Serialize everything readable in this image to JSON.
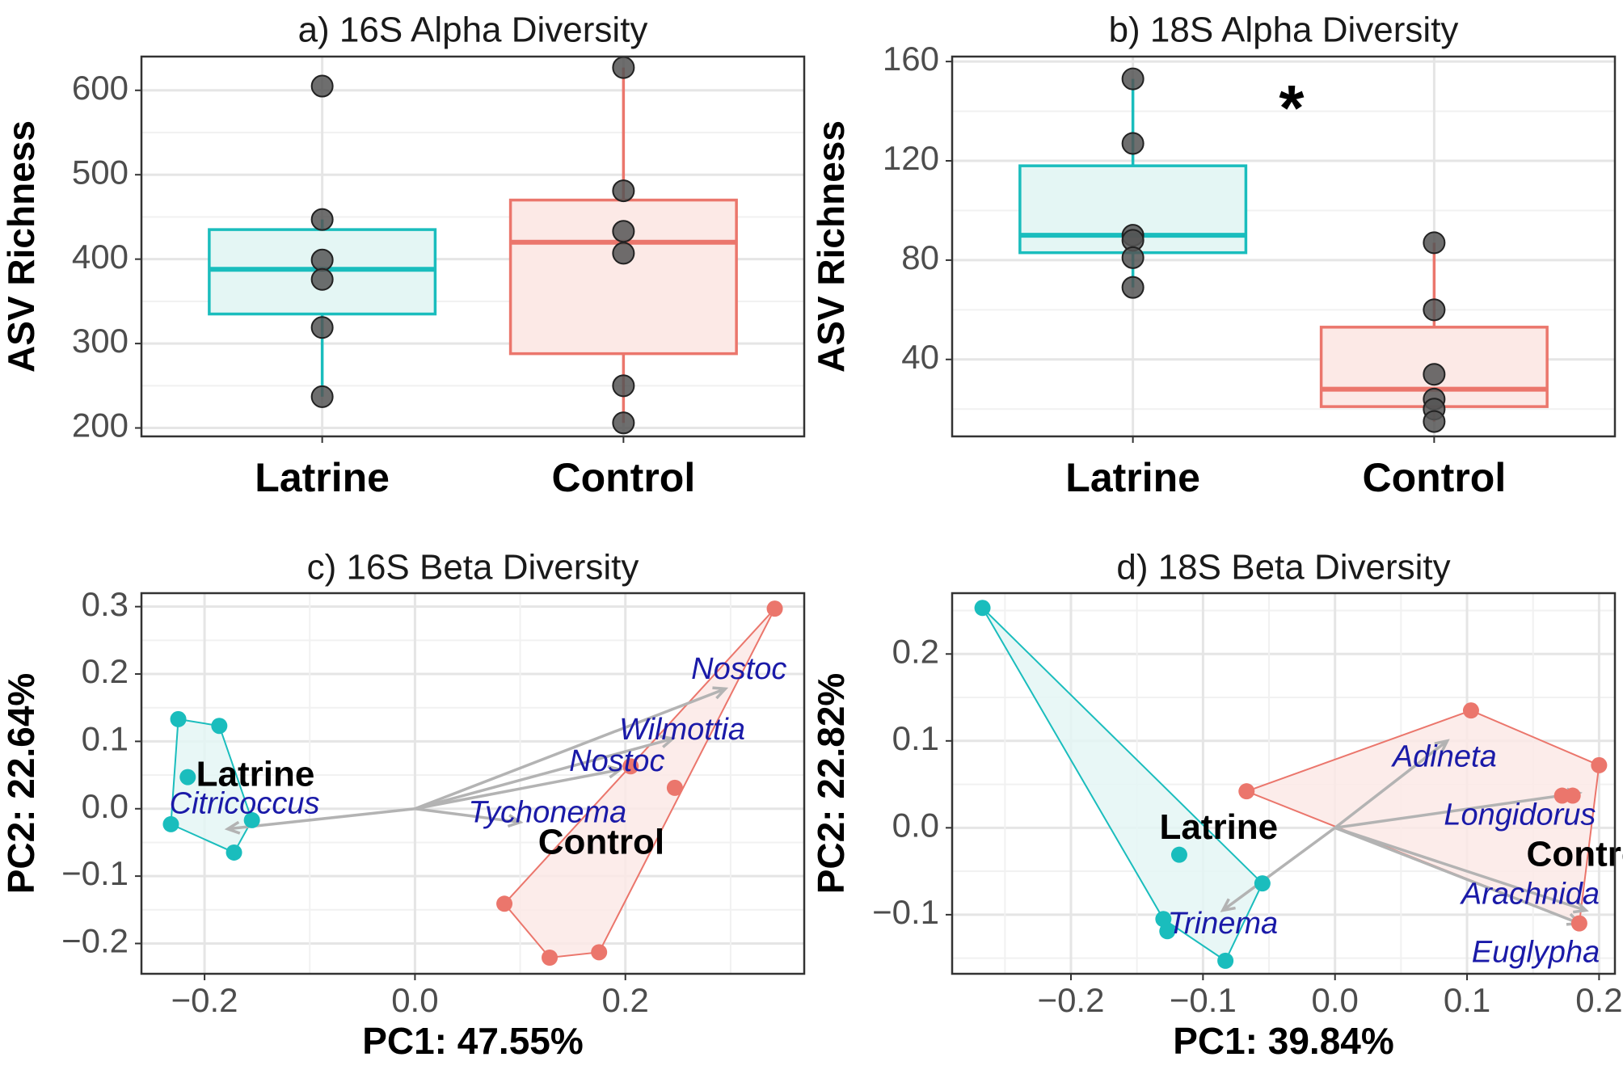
{
  "colors": {
    "latrine": "#1ABDBD",
    "latrine_fill": "#E4F6F4",
    "control": "#EB766C",
    "control_fill": "#FCE9E6",
    "point": "#555555",
    "taxon": "#1a1aa8",
    "arrow": "#B3B3B3"
  },
  "chart_data": [
    {
      "id": "a",
      "type": "box",
      "title": "a) 16S Alpha Diversity",
      "ylabel": "ASV Richness",
      "xlabel": "",
      "categories": [
        "Latrine",
        "Control"
      ],
      "ylim": [
        190,
        640
      ],
      "yticks": [
        200,
        300,
        400,
        500,
        600
      ],
      "boxes": [
        {
          "group": "Latrine",
          "whisker_low": 237,
          "q1": 335,
          "median": 388,
          "q3": 435,
          "whisker_high": 447
        },
        {
          "group": "Control",
          "whisker_low": 206,
          "q1": 288,
          "median": 420,
          "q3": 470,
          "whisker_high": 627
        }
      ],
      "points": [
        {
          "group": "Latrine",
          "values": [
            605,
            447,
            399,
            376,
            319,
            237
          ]
        },
        {
          "group": "Control",
          "values": [
            627,
            481,
            433,
            407,
            250,
            206
          ]
        }
      ],
      "annotation": ""
    },
    {
      "id": "b",
      "type": "box",
      "title": "b) 18S Alpha Diversity",
      "ylabel": "ASV Richness",
      "xlabel": "",
      "categories": [
        "Latrine",
        "Control"
      ],
      "ylim": [
        9,
        162
      ],
      "yticks": [
        40,
        80,
        120,
        160
      ],
      "boxes": [
        {
          "group": "Latrine",
          "whisker_low": 69,
          "q1": 83,
          "median": 90,
          "q3": 118,
          "whisker_high": 153
        },
        {
          "group": "Control",
          "whisker_low": 15,
          "q1": 21,
          "median": 28,
          "q3": 53,
          "whisker_high": 87
        }
      ],
      "points": [
        {
          "group": "Latrine",
          "values": [
            153,
            127,
            90,
            88,
            81,
            69
          ]
        },
        {
          "group": "Control",
          "values": [
            87,
            60,
            34,
            24,
            20,
            15
          ]
        }
      ],
      "annotation": "*"
    },
    {
      "id": "c",
      "type": "scatter",
      "title": "c) 16S Beta Diversity",
      "xlabel": "PC1: 47.55%",
      "ylabel": "PC2: 22.64%",
      "xlim": [
        -0.26,
        0.37
      ],
      "ylim": [
        -0.245,
        0.32
      ],
      "xticks": [
        -0.2,
        0.0,
        0.2
      ],
      "yticks": [
        -0.2,
        -0.1,
        0.0,
        0.1,
        0.2,
        0.3
      ],
      "tick_labels_x": [
        "−0.2",
        "0.0",
        "0.2"
      ],
      "tick_labels_y": [
        "−0.2",
        "−0.1",
        "0.0",
        "0.1",
        "0.2",
        "0.3"
      ],
      "groups": [
        {
          "name": "Latrine",
          "label_at": [
            -0.208,
            0.048
          ],
          "points": [
            [
              -0.225,
              0.133
            ],
            [
              -0.186,
              0.123
            ],
            [
              -0.216,
              0.047
            ],
            [
              -0.155,
              -0.017
            ],
            [
              -0.232,
              -0.023
            ],
            [
              -0.172,
              -0.065
            ]
          ],
          "hull": [
            [
              -0.225,
              0.133
            ],
            [
              -0.186,
              0.123
            ],
            [
              -0.155,
              -0.017
            ],
            [
              -0.172,
              -0.065
            ],
            [
              -0.232,
              -0.023
            ]
          ]
        },
        {
          "name": "Control",
          "label_at": [
            0.117,
            -0.053
          ],
          "points": [
            [
              0.342,
              0.297
            ],
            [
              0.205,
              0.063
            ],
            [
              0.247,
              0.031
            ],
            [
              0.085,
              -0.141
            ],
            [
              0.175,
              -0.213
            ],
            [
              0.128,
              -0.221
            ]
          ],
          "hull": [
            [
              0.342,
              0.297
            ],
            [
              0.175,
              -0.213
            ],
            [
              0.128,
              -0.221
            ],
            [
              0.085,
              -0.141
            ]
          ]
        }
      ],
      "origin": [
        0.0,
        0.0
      ],
      "arrows": [
        {
          "taxon": "Nostoc",
          "to": [
            0.295,
            0.178
          ],
          "label_at": [
            0.308,
            0.205
          ]
        },
        {
          "taxon": "Wilmottia",
          "to": [
            0.245,
            0.104
          ],
          "label_at": [
            0.254,
            0.115
          ]
        },
        {
          "taxon": "Nostoc",
          "to": [
            0.195,
            0.058
          ],
          "label_at": [
            0.192,
            0.068
          ]
        },
        {
          "taxon": "Tychonema",
          "to": [
            0.1,
            -0.02
          ],
          "label_at": [
            0.126,
            -0.008
          ]
        },
        {
          "taxon": "Citricoccus",
          "to": [
            -0.178,
            -0.03
          ],
          "label_at": [
            -0.162,
            0.005
          ]
        }
      ]
    },
    {
      "id": "d",
      "type": "scatter",
      "title": "d) 18S Beta Diversity",
      "xlabel": "PC1: 39.84%",
      "ylabel": "PC2: 22.82%",
      "xlim": [
        -0.29,
        0.212
      ],
      "ylim": [
        -0.168,
        0.27
      ],
      "xticks": [
        -0.2,
        -0.1,
        0.0,
        0.1,
        0.2
      ],
      "yticks": [
        -0.1,
        0.0,
        0.1,
        0.2
      ],
      "tick_labels_x": [
        "−0.2",
        "−0.1",
        "0.0",
        "0.1",
        "0.2"
      ],
      "tick_labels_y": [
        "−0.1",
        "0.0",
        "0.1",
        "0.2"
      ],
      "groups": [
        {
          "name": "Latrine",
          "label_at": [
            -0.133,
            -0.002
          ],
          "points": [
            [
              -0.267,
              0.253
            ],
            [
              -0.118,
              -0.031
            ],
            [
              -0.055,
              -0.064
            ],
            [
              -0.13,
              -0.105
            ],
            [
              -0.127,
              -0.119
            ],
            [
              -0.083,
              -0.153
            ]
          ],
          "hull": [
            [
              -0.267,
              0.253
            ],
            [
              -0.055,
              -0.064
            ],
            [
              -0.083,
              -0.153
            ],
            [
              -0.13,
              -0.105
            ]
          ]
        },
        {
          "name": "Control",
          "label_at": [
            0.145,
            -0.033
          ],
          "points": [
            [
              0.103,
              0.135
            ],
            [
              0.2,
              0.072
            ],
            [
              -0.067,
              0.042
            ],
            [
              0.18,
              0.037
            ],
            [
              0.172,
              0.037
            ],
            [
              0.185,
              -0.11
            ]
          ],
          "hull": [
            [
              0.103,
              0.135
            ],
            [
              0.2,
              0.072
            ],
            [
              0.185,
              -0.11
            ],
            [
              -0.067,
              0.042
            ]
          ]
        }
      ],
      "origin": [
        0.0,
        0.0
      ],
      "arrows": [
        {
          "taxon": "Adineta",
          "to": [
            0.085,
            0.1
          ],
          "label_at": [
            0.083,
            0.08
          ]
        },
        {
          "taxon": "Longidorus",
          "to": [
            0.185,
            0.04
          ],
          "label_at": [
            0.14,
            0.013
          ]
        },
        {
          "taxon": "Arachnida",
          "to": [
            0.185,
            -0.11
          ],
          "label_at": [
            0.148,
            -0.078
          ]
        },
        {
          "taxon": "Euglypha",
          "to": [
            0.19,
            -0.095
          ],
          "label_at": [
            0.152,
            -0.145
          ]
        },
        {
          "taxon": "Trinema",
          "to": [
            -0.085,
            -0.095
          ],
          "label_at": [
            -0.085,
            -0.112
          ]
        }
      ]
    }
  ]
}
